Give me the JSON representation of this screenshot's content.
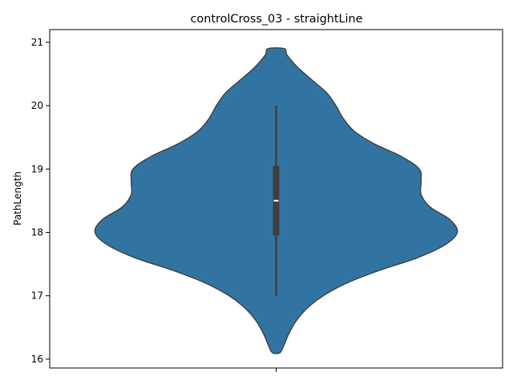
{
  "chart_data": {
    "type": "violin",
    "title": "controlCross_03 - straightLine",
    "xlabel": "",
    "ylabel": "PathLength",
    "ylim": [
      15.86,
      21.2
    ],
    "yticks": [
      16,
      17,
      18,
      19,
      20,
      21
    ],
    "grid": false,
    "colors": {
      "violin": "#3274a1",
      "outline": "#3f3f3f",
      "box": "#3f3f3f",
      "median": "#ffffff"
    },
    "violin": {
      "density_profile": [
        {
          "y": 16.1,
          "half_width": 0.02
        },
        {
          "y": 16.2,
          "half_width": 0.04
        },
        {
          "y": 16.4,
          "half_width": 0.07
        },
        {
          "y": 16.6,
          "half_width": 0.11
        },
        {
          "y": 16.8,
          "half_width": 0.17
        },
        {
          "y": 17.0,
          "half_width": 0.26
        },
        {
          "y": 17.2,
          "half_width": 0.39
        },
        {
          "y": 17.4,
          "half_width": 0.57
        },
        {
          "y": 17.6,
          "half_width": 0.78
        },
        {
          "y": 17.8,
          "half_width": 0.93
        },
        {
          "y": 18.0,
          "half_width": 1.0
        },
        {
          "y": 18.2,
          "half_width": 0.96
        },
        {
          "y": 18.4,
          "half_width": 0.85
        },
        {
          "y": 18.6,
          "half_width": 0.8
        },
        {
          "y": 18.8,
          "half_width": 0.8
        },
        {
          "y": 19.0,
          "half_width": 0.79
        },
        {
          "y": 19.2,
          "half_width": 0.69
        },
        {
          "y": 19.4,
          "half_width": 0.54
        },
        {
          "y": 19.6,
          "half_width": 0.43
        },
        {
          "y": 19.8,
          "half_width": 0.37
        },
        {
          "y": 20.0,
          "half_width": 0.33
        },
        {
          "y": 20.2,
          "half_width": 0.28
        },
        {
          "y": 20.4,
          "half_width": 0.2
        },
        {
          "y": 20.6,
          "half_width": 0.12
        },
        {
          "y": 20.8,
          "half_width": 0.06
        },
        {
          "y": 20.9,
          "half_width": 0.045
        }
      ],
      "box": {
        "whisker_low": 17.0,
        "q1": 17.95,
        "median": 18.5,
        "q3": 19.05,
        "whisker_high": 20.0
      }
    }
  }
}
